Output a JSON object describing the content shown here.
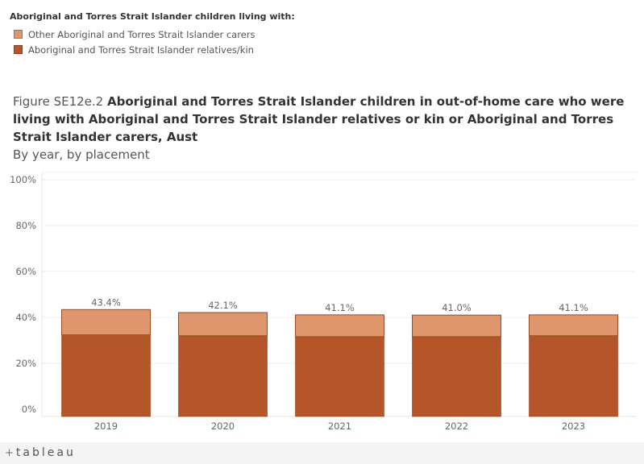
{
  "legend": {
    "title": "Aboriginal and Torres Strait Islander children living with:",
    "items": [
      {
        "label": "Other Aboriginal and Torres Strait Islander carers",
        "color": "#e0966d",
        "border": "#c06a3e"
      },
      {
        "label": "Aboriginal and Torres Strait Islander relatives/kin",
        "color": "#b5562a",
        "border": "#8f3f1c"
      }
    ]
  },
  "figure": {
    "lead": "Figure SE12e.2 ",
    "title": "Aboriginal and Torres Strait Islander children in out-of-home care who were living with Aboriginal and Torres Strait Islander relatives or kin or Aboriginal and Torres Strait Islander carers, Aust",
    "subtitle": "By year, by placement"
  },
  "chart_data": {
    "type": "bar",
    "stacked": true,
    "categories": [
      "2019",
      "2020",
      "2021",
      "2022",
      "2023"
    ],
    "series": [
      {
        "name": "Aboriginal and Torres Strait Islander relatives/kin",
        "values": [
          32.4,
          32.0,
          31.6,
          31.6,
          32.0
        ],
        "color": "#b5562a"
      },
      {
        "name": "Other Aboriginal and Torres Strait Islander carers",
        "values": [
          11.0,
          10.1,
          9.5,
          9.4,
          9.1
        ],
        "color": "#e0966d"
      }
    ],
    "total_labels": [
      "43.4%",
      "42.1%",
      "41.1%",
      "41.0%",
      "41.1%"
    ],
    "ylim": [
      0,
      100
    ],
    "yticks": [
      "0%",
      "20%",
      "40%",
      "60%",
      "80%",
      "100%"
    ],
    "ytick_values": [
      0,
      20,
      40,
      60,
      80,
      100
    ],
    "grid": true
  },
  "footer": {
    "logo": "tableau",
    "logo_plus": "+"
  }
}
